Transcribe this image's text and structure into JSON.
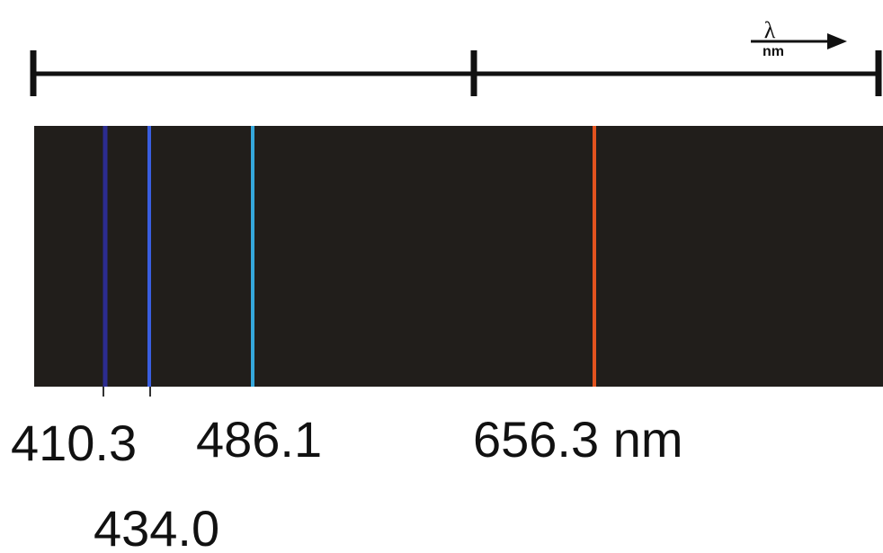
{
  "axis": {
    "symbol": "λ",
    "unit": "nm"
  },
  "lines": [
    {
      "label": "410.3"
    },
    {
      "label": "434.0"
    },
    {
      "label": "486.1"
    },
    {
      "label": "656.3 nm"
    }
  ]
}
